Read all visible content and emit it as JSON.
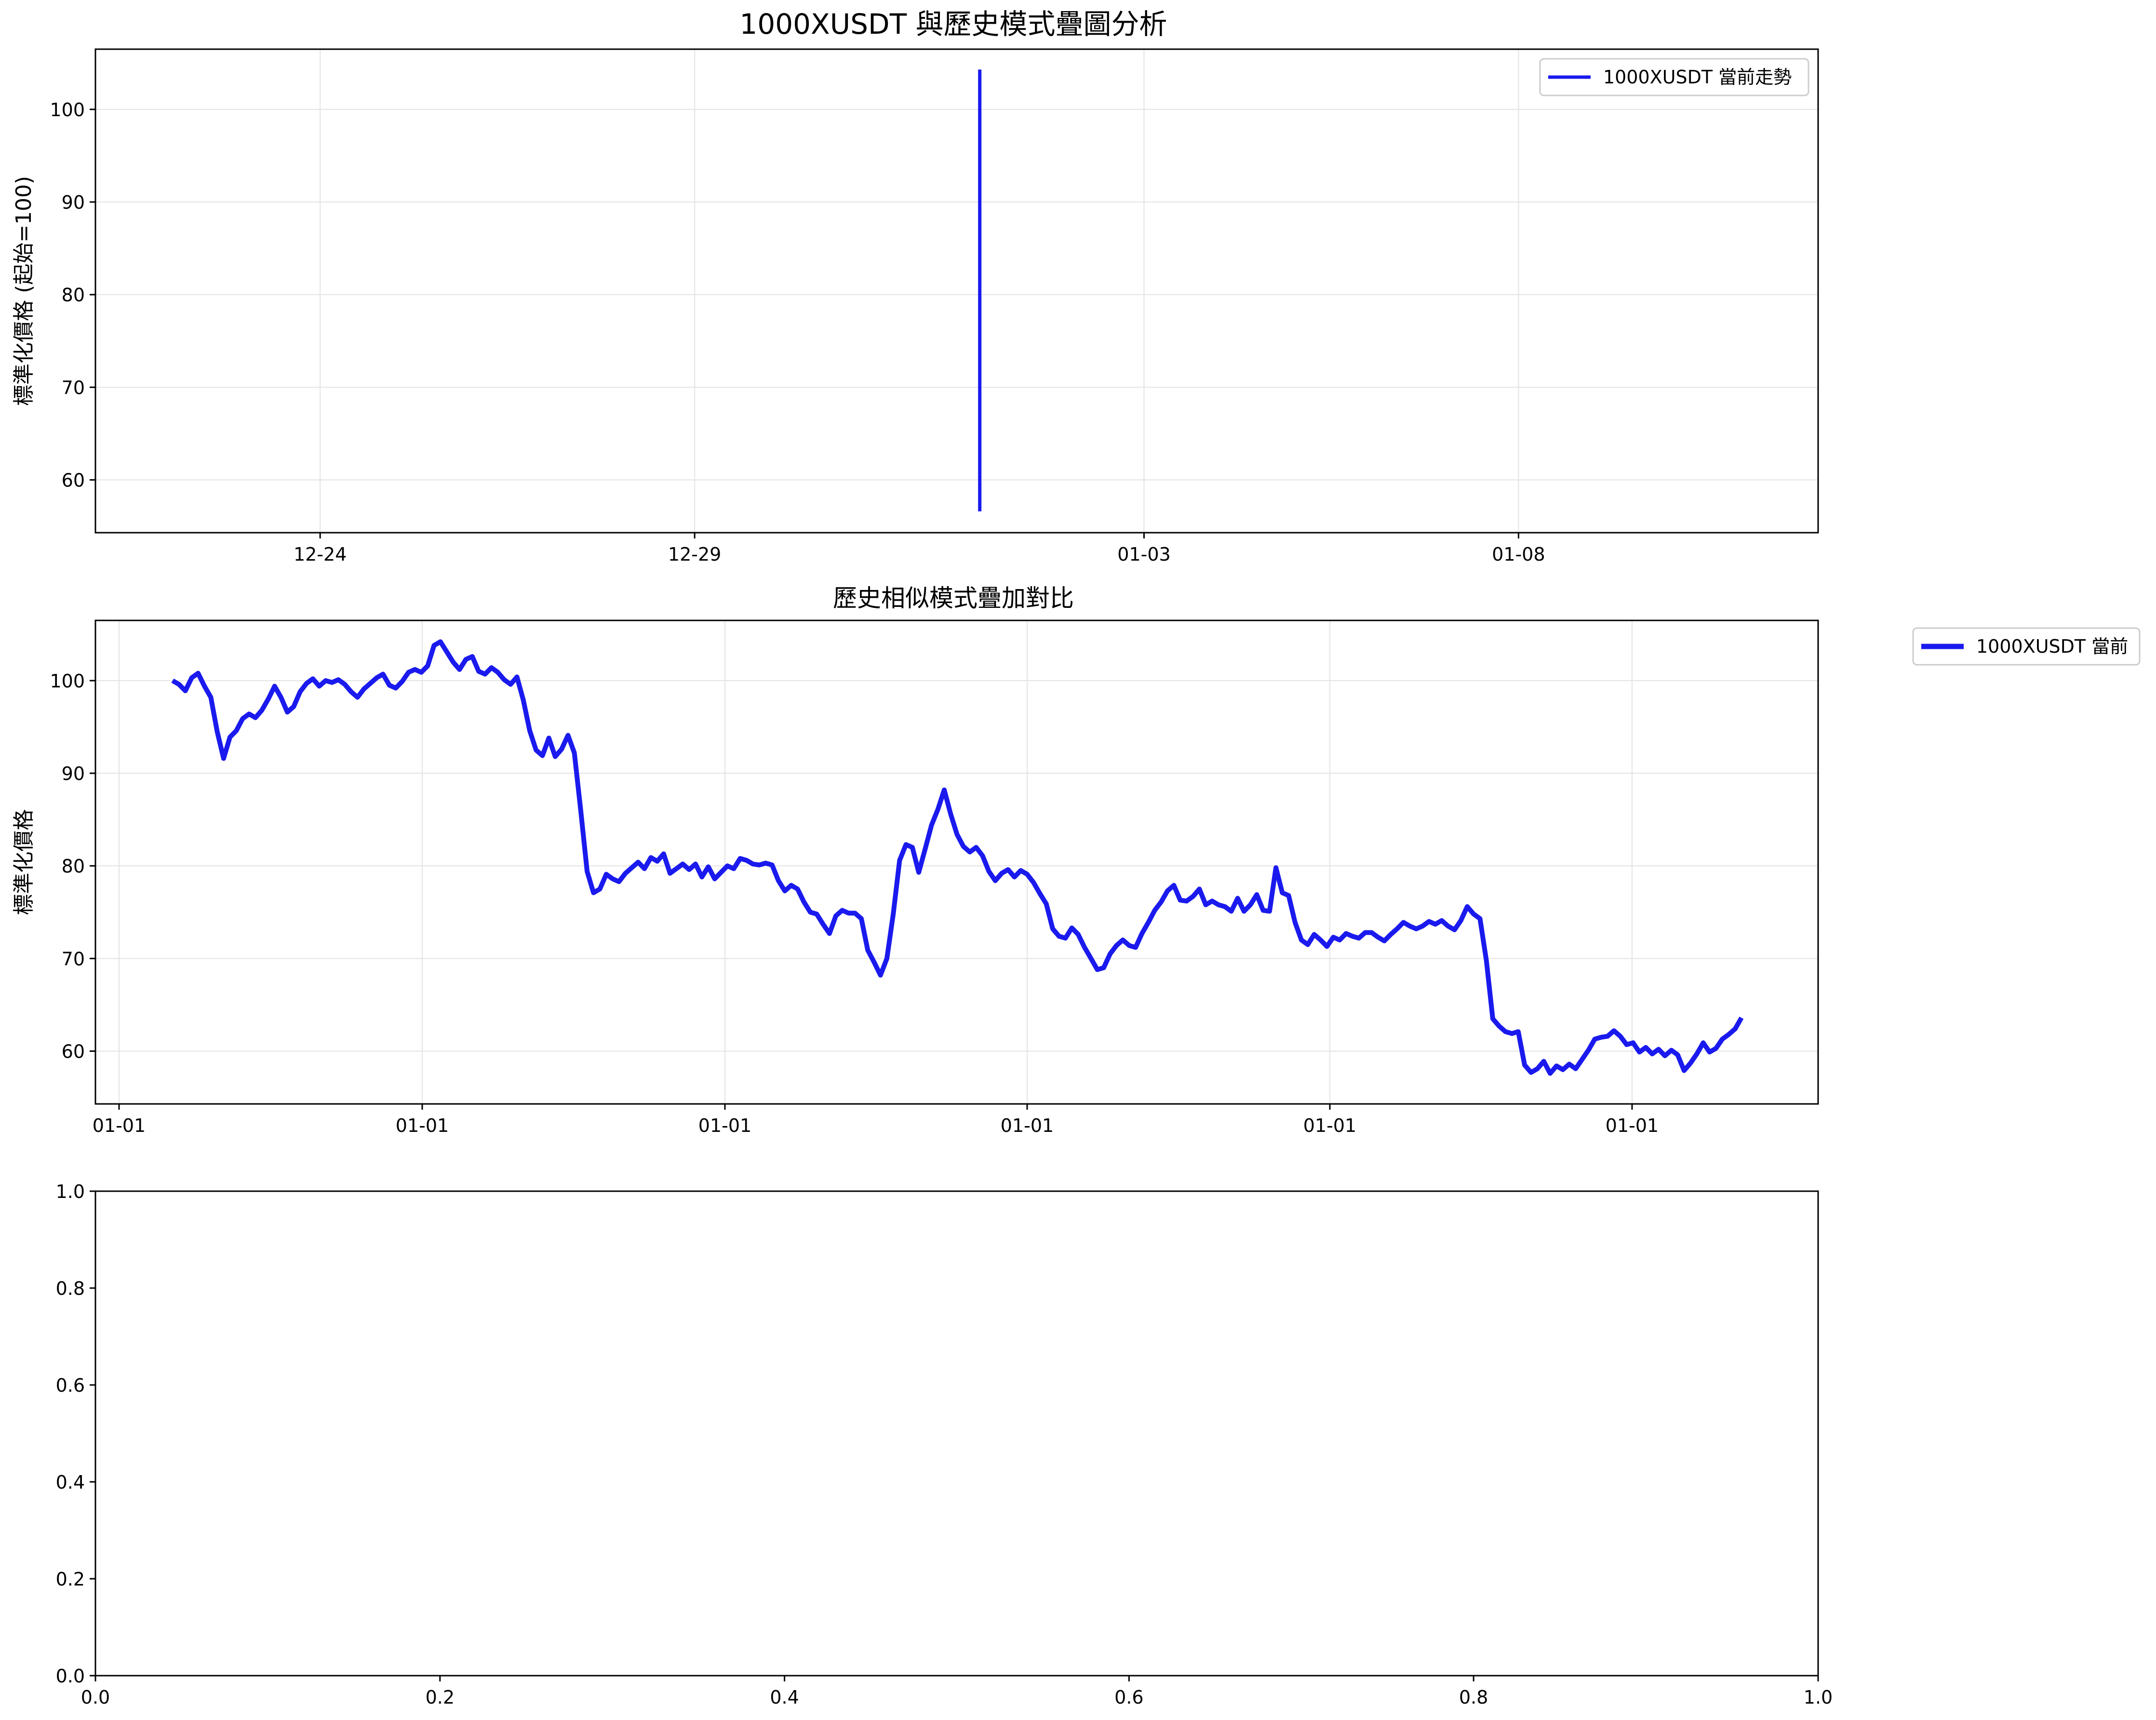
{
  "figure": {
    "title": "1000XUSDT 與歷史模式疊圖分析"
  },
  "colors": {
    "line": "#1a1aee",
    "grid": "#e3e3e3",
    "axis": "#000000"
  },
  "chart_data": [
    {
      "type": "line",
      "title": "",
      "ylabel": "標準化價格 (起始=100)",
      "xlabel": "",
      "x_ticks": [
        "12-24",
        "12-29",
        "01-03",
        "01-08"
      ],
      "y_ticks": [
        60,
        70,
        80,
        90,
        100
      ],
      "ylim": [
        54.3,
        106.5
      ],
      "xlim": [
        "12-21",
        "01-12"
      ],
      "grid": true,
      "legend_position": "upper right",
      "series": [
        {
          "name": "1000XUSDT 當前走勢",
          "note_points": "all data concentrated on a single day (vertical line)",
          "x": [
            "01-01",
            "01-01"
          ],
          "y": [
            56.6,
            104.3
          ]
        }
      ]
    },
    {
      "type": "line",
      "title": "歷史相似模式疊加對比",
      "ylabel": "標準化價格",
      "xlabel": "",
      "x_ticks": [
        "01-01",
        "01-01",
        "01-01",
        "01-01",
        "01-01",
        "01-01"
      ],
      "y_ticks": [
        60,
        70,
        80,
        90,
        100
      ],
      "ylim": [
        54.3,
        106.5
      ],
      "grid": true,
      "legend_position": "outside upper right",
      "series": [
        {
          "name": "1000XUSDT 當前",
          "x_step": "hourly-ish index",
          "y": [
            100.0,
            99.6,
            98.9,
            100.3,
            100.8,
            99.4,
            98.2,
            94.5,
            91.6,
            93.9,
            94.6,
            95.9,
            96.4,
            96.0,
            96.8,
            98.0,
            99.4,
            98.2,
            96.6,
            97.2,
            98.8,
            99.7,
            100.2,
            99.4,
            100.0,
            99.8,
            100.1,
            99.6,
            98.8,
            98.2,
            99.1,
            99.7,
            100.3,
            100.7,
            99.5,
            99.2,
            99.9,
            100.9,
            101.2,
            100.9,
            101.6,
            103.8,
            104.2,
            103.1,
            102.0,
            101.2,
            102.3,
            102.6,
            101.0,
            100.7,
            101.4,
            100.9,
            100.1,
            99.6,
            100.4,
            97.9,
            94.6,
            92.5,
            91.9,
            93.8,
            91.8,
            92.6,
            94.1,
            92.2,
            86.0,
            79.4,
            77.1,
            77.5,
            79.1,
            78.6,
            78.3,
            79.2,
            79.8,
            80.4,
            79.7,
            80.9,
            80.5,
            81.3,
            79.2,
            79.7,
            80.2,
            79.6,
            80.2,
            78.8,
            79.9,
            78.6,
            79.3,
            80.0,
            79.7,
            80.8,
            80.6,
            80.2,
            80.1,
            80.3,
            80.1,
            78.4,
            77.3,
            77.9,
            77.5,
            76.1,
            75.0,
            74.8,
            73.7,
            72.7,
            74.6,
            75.2,
            74.9,
            74.9,
            74.3,
            70.9,
            69.6,
            68.2,
            70.0,
            74.8,
            80.6,
            82.3,
            82.0,
            79.3,
            81.8,
            84.4,
            86.1,
            88.2,
            85.6,
            83.4,
            82.1,
            81.5,
            82.0,
            81.1,
            79.4,
            78.4,
            79.2,
            79.6,
            78.8,
            79.5,
            79.1,
            78.2,
            77.0,
            75.9,
            73.2,
            72.4,
            72.2,
            73.3,
            72.6,
            71.2,
            70.0,
            68.8,
            69.0,
            70.5,
            71.4,
            72.0,
            71.4,
            71.2,
            72.7,
            73.9,
            75.2,
            76.1,
            77.3,
            77.9,
            76.3,
            76.2,
            76.7,
            77.5,
            75.8,
            76.2,
            75.8,
            75.6,
            75.1,
            76.5,
            75.1,
            75.8,
            76.9,
            75.2,
            75.1,
            79.8,
            77.1,
            76.8,
            73.9,
            72.0,
            71.5,
            72.6,
            72.0,
            71.3,
            72.3,
            72.0,
            72.7,
            72.4,
            72.2,
            72.8,
            72.8,
            72.3,
            71.9,
            72.6,
            73.2,
            73.9,
            73.5,
            73.2,
            73.5,
            74.0,
            73.7,
            74.1,
            73.5,
            73.1,
            74.1,
            75.6,
            74.8,
            74.3,
            69.8,
            63.5,
            62.7,
            62.1,
            61.9,
            62.1,
            58.5,
            57.7,
            58.1,
            58.9,
            57.6,
            58.4,
            58.0,
            58.6,
            58.1,
            59.1,
            60.1,
            61.3,
            61.5,
            61.6,
            62.2,
            61.6,
            60.7,
            60.9,
            59.9,
            60.4,
            59.7,
            60.2,
            59.5,
            60.1,
            59.6,
            57.9,
            58.7,
            59.7,
            60.9,
            59.9,
            60.3,
            61.3,
            61.8,
            62.4,
            63.6
          ]
        }
      ]
    },
    {
      "type": "line",
      "title": "",
      "xlabel": "",
      "ylabel": "",
      "x_ticks": [
        "0.0",
        "0.2",
        "0.4",
        "0.6",
        "0.8",
        "1.0"
      ],
      "y_ticks": [
        "0.0",
        "0.2",
        "0.4",
        "0.6",
        "0.8",
        "1.0"
      ],
      "xlim": [
        0,
        1
      ],
      "ylim": [
        0,
        1
      ],
      "grid": false,
      "series": []
    }
  ]
}
